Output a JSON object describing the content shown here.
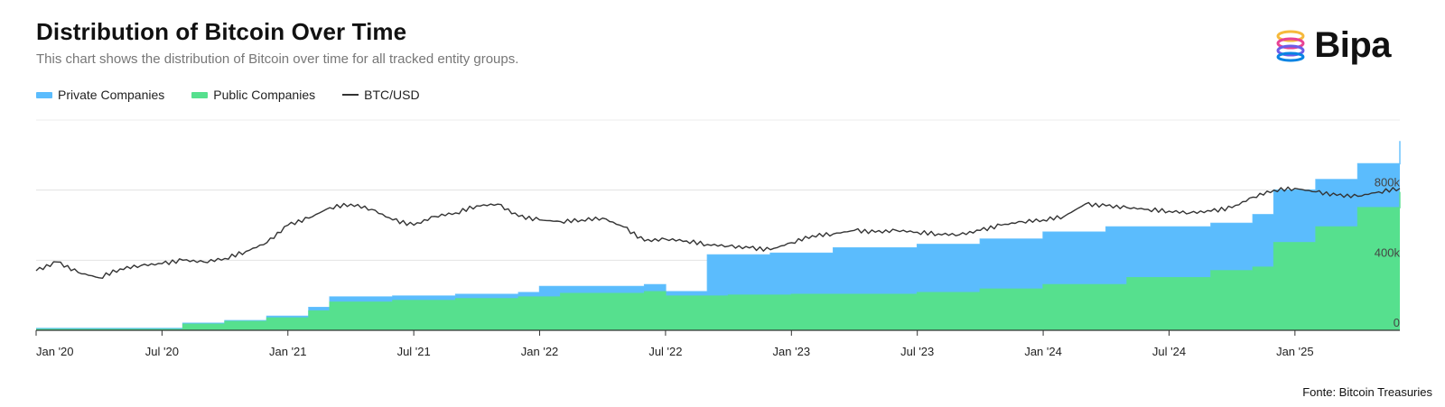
{
  "header": {
    "title": "Distribution of Bitcoin Over Time",
    "subtitle": "This chart shows the distribution of Bitcoin over time for all tracked entity groups."
  },
  "legend": {
    "items": [
      {
        "label": "Private Companies",
        "color": "#5bbcfd"
      },
      {
        "label": "Public Companies",
        "color": "#56e08e"
      },
      {
        "label": "BTC/USD",
        "color": "#333333"
      }
    ]
  },
  "logo": {
    "text": "Bipa"
  },
  "footer": {
    "source": "Fonte: Bitcoin Treasuries"
  },
  "chart_data": {
    "type": "area",
    "title": "Distribution of Bitcoin Over Time",
    "x_tick_labels": [
      "Jan '20",
      "Jul '20",
      "Jan '21",
      "Jul '21",
      "Jan '22",
      "Jul '22",
      "Jan '23",
      "Jul '23",
      "Jan '24",
      "Jul '24",
      "Jan '25"
    ],
    "x_tick_dates": [
      "2020-01",
      "2020-07",
      "2021-01",
      "2021-07",
      "2022-01",
      "2022-07",
      "2023-01",
      "2023-07",
      "2024-01",
      "2024-07",
      "2025-01"
    ],
    "x_range": [
      "2020-01",
      "2025-06"
    ],
    "y_tick_labels": [
      "0",
      "400k",
      "800k"
    ],
    "y_ticks": [
      0,
      400000,
      800000
    ],
    "ylim": [
      0,
      1200000
    ],
    "grid": true,
    "legend_position": "top-left",
    "series": [
      {
        "name": "Public Companies",
        "color": "#56e08e",
        "points": [
          [
            "2020-01",
            5000
          ],
          [
            "2020-07",
            5000
          ],
          [
            "2020-08",
            35000
          ],
          [
            "2020-10",
            50000
          ],
          [
            "2020-12",
            70000
          ],
          [
            "2021-02",
            110000
          ],
          [
            "2021-03",
            160000
          ],
          [
            "2021-06",
            170000
          ],
          [
            "2021-09",
            180000
          ],
          [
            "2021-12",
            190000
          ],
          [
            "2022-02",
            210000
          ],
          [
            "2022-06",
            220000
          ],
          [
            "2022-07",
            195000
          ],
          [
            "2022-10",
            200000
          ],
          [
            "2023-01",
            205000
          ],
          [
            "2023-07",
            215000
          ],
          [
            "2023-10",
            235000
          ],
          [
            "2024-01",
            260000
          ],
          [
            "2024-05",
            300000
          ],
          [
            "2024-09",
            340000
          ],
          [
            "2024-11",
            360000
          ],
          [
            "2024-12",
            500000
          ],
          [
            "2025-02",
            590000
          ],
          [
            "2025-04",
            700000
          ],
          [
            "2025-06",
            790000
          ]
        ]
      },
      {
        "name": "Private Companies",
        "color": "#5bbcfd",
        "points": [
          [
            "2020-01",
            10000
          ],
          [
            "2020-07",
            10000
          ],
          [
            "2020-08",
            40000
          ],
          [
            "2020-10",
            55000
          ],
          [
            "2020-12",
            80000
          ],
          [
            "2021-02",
            130000
          ],
          [
            "2021-03",
            190000
          ],
          [
            "2021-06",
            195000
          ],
          [
            "2021-09",
            205000
          ],
          [
            "2021-12",
            215000
          ],
          [
            "2022-01",
            250000
          ],
          [
            "2022-06",
            260000
          ],
          [
            "2022-07",
            220000
          ],
          [
            "2022-08",
            220000
          ],
          [
            "2022-09",
            430000
          ],
          [
            "2022-12",
            440000
          ],
          [
            "2023-03",
            470000
          ],
          [
            "2023-07",
            490000
          ],
          [
            "2023-10",
            520000
          ],
          [
            "2024-01",
            560000
          ],
          [
            "2024-04",
            590000
          ],
          [
            "2024-09",
            610000
          ],
          [
            "2024-11",
            660000
          ],
          [
            "2024-12",
            800000
          ],
          [
            "2025-02",
            860000
          ],
          [
            "2025-04",
            950000
          ],
          [
            "2025-06",
            1080000
          ]
        ]
      },
      {
        "name": "BTC/USD",
        "color": "#333333",
        "points": [
          [
            "2020-01",
            340000
          ],
          [
            "2020-02",
            390000
          ],
          [
            "2020-03",
            330000
          ],
          [
            "2020-04",
            300000
          ],
          [
            "2020-05",
            350000
          ],
          [
            "2020-06",
            370000
          ],
          [
            "2020-07",
            380000
          ],
          [
            "2020-08",
            400000
          ],
          [
            "2020-09",
            390000
          ],
          [
            "2020-10",
            410000
          ],
          [
            "2020-11",
            450000
          ],
          [
            "2020-12",
            500000
          ],
          [
            "2021-01",
            600000
          ],
          [
            "2021-02",
            640000
          ],
          [
            "2021-03",
            700000
          ],
          [
            "2021-04",
            720000
          ],
          [
            "2021-05",
            690000
          ],
          [
            "2021-06",
            630000
          ],
          [
            "2021-07",
            600000
          ],
          [
            "2021-08",
            650000
          ],
          [
            "2021-09",
            670000
          ],
          [
            "2021-10",
            710000
          ],
          [
            "2021-11",
            720000
          ],
          [
            "2021-12",
            650000
          ],
          [
            "2022-01",
            630000
          ],
          [
            "2022-02",
            620000
          ],
          [
            "2022-03",
            630000
          ],
          [
            "2022-04",
            640000
          ],
          [
            "2022-05",
            590000
          ],
          [
            "2022-06",
            510000
          ],
          [
            "2022-07",
            520000
          ],
          [
            "2022-08",
            510000
          ],
          [
            "2022-09",
            490000
          ],
          [
            "2022-10",
            480000
          ],
          [
            "2022-11",
            470000
          ],
          [
            "2022-12",
            460000
          ],
          [
            "2023-01",
            500000
          ],
          [
            "2023-02",
            540000
          ],
          [
            "2023-03",
            550000
          ],
          [
            "2023-04",
            570000
          ],
          [
            "2023-05",
            560000
          ],
          [
            "2023-06",
            570000
          ],
          [
            "2023-07",
            560000
          ],
          [
            "2023-08",
            550000
          ],
          [
            "2023-09",
            545000
          ],
          [
            "2023-10",
            570000
          ],
          [
            "2023-11",
            600000
          ],
          [
            "2023-12",
            620000
          ],
          [
            "2024-01",
            630000
          ],
          [
            "2024-02",
            650000
          ],
          [
            "2024-03",
            720000
          ],
          [
            "2024-04",
            710000
          ],
          [
            "2024-05",
            700000
          ],
          [
            "2024-06",
            690000
          ],
          [
            "2024-07",
            680000
          ],
          [
            "2024-08",
            670000
          ],
          [
            "2024-09",
            680000
          ],
          [
            "2024-10",
            700000
          ],
          [
            "2024-11",
            760000
          ],
          [
            "2024-12",
            800000
          ],
          [
            "2025-01",
            810000
          ],
          [
            "2025-02",
            790000
          ],
          [
            "2025-03",
            770000
          ],
          [
            "2025-04",
            765000
          ],
          [
            "2025-05",
            790000
          ],
          [
            "2025-06",
            810000
          ]
        ]
      }
    ]
  }
}
